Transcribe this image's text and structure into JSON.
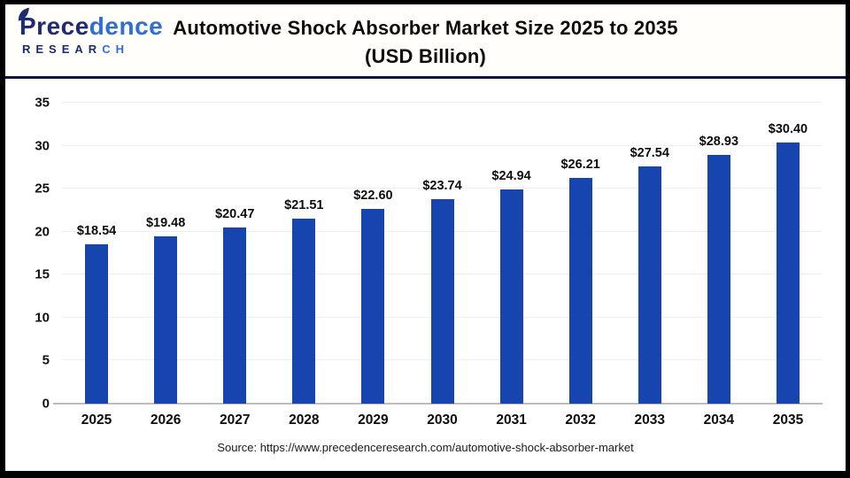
{
  "logo": {
    "name_part1": "Prece",
    "name_part2": "dence",
    "research_part1": "RESEAR",
    "research_part2": "CH"
  },
  "header": {
    "title_line1": "Automotive Shock Absorber Market Size 2025 to 2035",
    "title_line2": "(USD Billion)"
  },
  "chart_data": {
    "type": "bar",
    "title": "Automotive Shock Absorber Market Size 2025 to 2035 (USD Billion)",
    "categories": [
      "2025",
      "2026",
      "2027",
      "2028",
      "2029",
      "2030",
      "2031",
      "2032",
      "2033",
      "2034",
      "2035"
    ],
    "values": [
      18.54,
      19.48,
      20.47,
      21.51,
      22.6,
      23.74,
      24.94,
      26.21,
      27.54,
      28.93,
      30.4
    ],
    "point_labels": [
      "$18.54",
      "$19.48",
      "$20.47",
      "$21.51",
      "$22.60",
      "$23.74",
      "$24.94",
      "$26.21",
      "$27.54",
      "$28.93",
      "$30.40"
    ],
    "xlabel": "",
    "ylabel": "",
    "ylim": [
      0,
      35
    ],
    "yticks": [
      0,
      5,
      10,
      15,
      20,
      25,
      30,
      35
    ],
    "grid": true,
    "legend": "none",
    "bar_color": "#1745b0"
  },
  "footer": {
    "source": "Source: https://www.precedenceresearch.com/automotive-shock-absorber-market"
  },
  "colors": {
    "bar_blue": "#1745b0",
    "navy_rule": "#12124a",
    "logo_navy": "#1e2b72",
    "logo_blue": "#2f6ed2",
    "gridline": "#efefef",
    "axis_line": "#bdbdbd",
    "frame_border": "#000000"
  }
}
